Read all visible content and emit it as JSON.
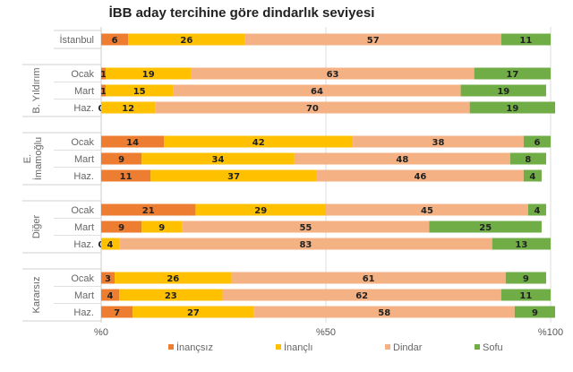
{
  "chart_data": {
    "type": "bar",
    "orientation": "horizontal",
    "stacked": true,
    "title": "İBB aday tercihine göre dindarlık seviyesi",
    "xlim": [
      0,
      100
    ],
    "x_ticks": [
      "%0",
      "%50",
      "%100"
    ],
    "grid": "vertical lines at %0, %50, %100",
    "legend_position": "bottom",
    "series_names": [
      "İnançsız",
      "İnançlı",
      "Dindar",
      "Sofu"
    ],
    "colors": [
      "#ed7d31",
      "#ffc000",
      "#f4b183",
      "#70ad47"
    ],
    "groups": [
      {
        "name": "",
        "rows": [
          {
            "label": "İstanbul",
            "values": [
              6,
              26,
              57,
              11
            ]
          }
        ]
      },
      {
        "name": "B. Yıldırım",
        "rows": [
          {
            "label": "Ocak",
            "values": [
              1,
              19,
              63,
              17
            ]
          },
          {
            "label": "Mart",
            "values": [
              1,
              15,
              64,
              19
            ]
          },
          {
            "label": "Haz.",
            "values": [
              0,
              12,
              70,
              19
            ]
          }
        ]
      },
      {
        "name": "E. İmamoğlu",
        "rows": [
          {
            "label": "Ocak",
            "values": [
              14,
              42,
              38,
              6
            ]
          },
          {
            "label": "Mart",
            "values": [
              9,
              34,
              48,
              8
            ]
          },
          {
            "label": "Haz.",
            "values": [
              11,
              37,
              46,
              4
            ]
          }
        ]
      },
      {
        "name": "Diğer",
        "rows": [
          {
            "label": "Ocak",
            "values": [
              21,
              29,
              45,
              4
            ]
          },
          {
            "label": "Mart",
            "values": [
              9,
              9,
              55,
              25
            ]
          },
          {
            "label": "Haz.",
            "values": [
              0,
              4,
              83,
              13
            ]
          }
        ]
      },
      {
        "name": "Kararsız",
        "rows": [
          {
            "label": "Ocak",
            "values": [
              3,
              26,
              61,
              9
            ]
          },
          {
            "label": "Mart",
            "values": [
              4,
              23,
              62,
              11
            ]
          },
          {
            "label": "Haz.",
            "values": [
              7,
              27,
              58,
              9
            ]
          }
        ]
      }
    ]
  }
}
